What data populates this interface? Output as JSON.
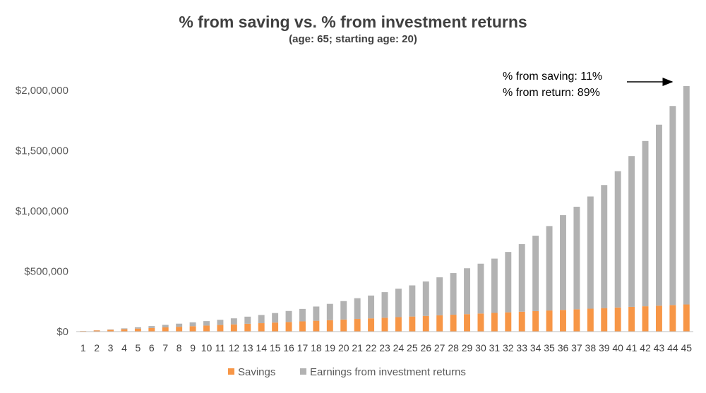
{
  "chart_data": {
    "type": "bar",
    "stacked": true,
    "title": "% from saving vs. % from investment returns",
    "subtitle": "(age: 65; starting age: 20)",
    "categories": [
      "1",
      "2",
      "3",
      "4",
      "5",
      "6",
      "7",
      "8",
      "9",
      "10",
      "11",
      "12",
      "13",
      "14",
      "15",
      "16",
      "17",
      "18",
      "19",
      "20",
      "21",
      "22",
      "23",
      "24",
      "25",
      "26",
      "27",
      "28",
      "29",
      "30",
      "31",
      "32",
      "33",
      "34",
      "35",
      "36",
      "37",
      "38",
      "39",
      "40",
      "41",
      "42",
      "43",
      "44",
      "45"
    ],
    "series": [
      {
        "name": "Savings",
        "color": "#F79646",
        "values": [
          5000,
          10000,
          15000,
          20000,
          25000,
          30000,
          35000,
          40000,
          45000,
          50000,
          55000,
          60000,
          65000,
          70000,
          75000,
          80000,
          85000,
          90000,
          95000,
          100000,
          105000,
          110000,
          115000,
          120000,
          125000,
          130000,
          135000,
          140000,
          145000,
          150000,
          155000,
          160000,
          165000,
          170000,
          175000,
          180000,
          185000,
          190000,
          195000,
          200000,
          205000,
          210000,
          215000,
          220000,
          225000
        ]
      },
      {
        "name": "Earnings from investment returns",
        "color": "#B2B2B2",
        "values": [
          0,
          1000,
          3000,
          7000,
          11000,
          16000,
          21000,
          26000,
          32000,
          37000,
          43000,
          50000,
          59000,
          68000,
          79000,
          91000,
          103000,
          118000,
          135000,
          153000,
          172000,
          189000,
          212000,
          236000,
          258000,
          286000,
          315000,
          345000,
          380000,
          413000,
          450000,
          500000,
          560000,
          625000,
          700000,
          785000,
          850000,
          930000,
          1020000,
          1130000,
          1250000,
          1370000,
          1500000,
          1650000,
          1810000
        ]
      }
    ],
    "ylim": [
      0,
      2000000
    ],
    "yticks": [
      0,
      500000,
      1000000,
      1500000,
      2000000
    ],
    "ytick_labels": [
      "$0",
      "$500,000",
      "$1,000,000",
      "$1,500,000",
      "$2,000,000"
    ],
    "gridlines": false,
    "legend_position": "bottom",
    "annotations": [
      "% from saving: 11%",
      "% from return: 89%"
    ]
  }
}
